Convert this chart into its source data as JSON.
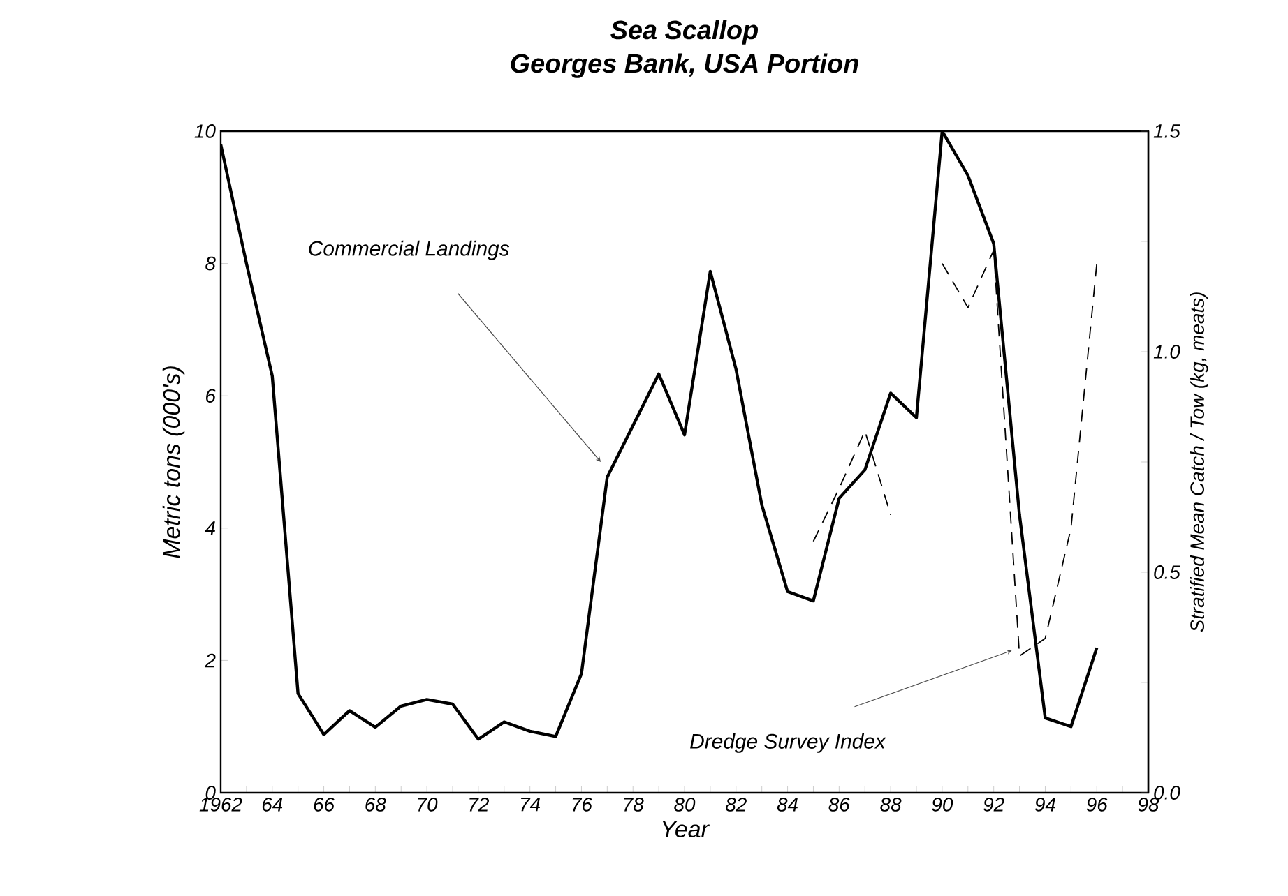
{
  "chart_data": {
    "type": "line",
    "title": "Sea Scallop",
    "subtitle": "Georges Bank, USA Portion",
    "xlabel": "Year",
    "ylabel": "Metric tons (000's)",
    "y2label": "Stratified Mean Catch / Tow (kg, meats)",
    "x": [
      1962,
      1963,
      1964,
      1965,
      1966,
      1967,
      1968,
      1969,
      1970,
      1971,
      1972,
      1973,
      1974,
      1975,
      1976,
      1977,
      1978,
      1979,
      1980,
      1981,
      1982,
      1983,
      1984,
      1985,
      1986,
      1987,
      1988,
      1989,
      1990,
      1991,
      1992,
      1993,
      1994,
      1995,
      1996
    ],
    "series": [
      {
        "name": "Commercial Landings",
        "color": "#000000",
        "line_style": "solid",
        "values": [
          9.8,
          8.0,
          6.3,
          1.5,
          0.88,
          1.24,
          0.99,
          1.31,
          1.41,
          1.34,
          0.81,
          1.07,
          0.93,
          0.85,
          1.8,
          4.77,
          5.55,
          6.33,
          5.41,
          7.88,
          6.4,
          4.35,
          3.04,
          2.9,
          4.45,
          4.88,
          6.04,
          5.67,
          10.0,
          9.33,
          8.3,
          4.2,
          1.13,
          1.0,
          2.19
        ]
      },
      {
        "name": "Dredge Survey Index",
        "color": "#000000",
        "line_style": "dashed",
        "axis": "y2",
        "x": [
          1985,
          1986,
          1987,
          1988,
          1989,
          1990,
          1991,
          1992,
          1993,
          1994,
          1995,
          1996
        ],
        "values": [
          0.57,
          0.69,
          0.82,
          0.63,
          null,
          1.2,
          1.1,
          1.23,
          0.31,
          0.35,
          0.6,
          1.2
        ]
      }
    ],
    "xlim": [
      1962,
      1998
    ],
    "xticks": [
      {
        "value": 1962,
        "label": "1962"
      },
      {
        "value": 1963,
        "label": null
      },
      {
        "value": 1964,
        "label": "64"
      },
      {
        "value": 1965,
        "label": null
      },
      {
        "value": 1966,
        "label": "66"
      },
      {
        "value": 1967,
        "label": null
      },
      {
        "value": 1968,
        "label": "68"
      },
      {
        "value": 1969,
        "label": null
      },
      {
        "value": 1970,
        "label": "70"
      },
      {
        "value": 1971,
        "label": null
      },
      {
        "value": 1972,
        "label": "72"
      },
      {
        "value": 1973,
        "label": null
      },
      {
        "value": 1974,
        "label": "74"
      },
      {
        "value": 1975,
        "label": null
      },
      {
        "value": 1976,
        "label": "76"
      },
      {
        "value": 1977,
        "label": null
      },
      {
        "value": 1978,
        "label": "78"
      },
      {
        "value": 1979,
        "label": null
      },
      {
        "value": 1980,
        "label": "80"
      },
      {
        "value": 1981,
        "label": null
      },
      {
        "value": 1982,
        "label": "82"
      },
      {
        "value": 1983,
        "label": null
      },
      {
        "value": 1984,
        "label": "84"
      },
      {
        "value": 1985,
        "label": null
      },
      {
        "value": 1986,
        "label": "86"
      },
      {
        "value": 1987,
        "label": null
      },
      {
        "value": 1988,
        "label": "88"
      },
      {
        "value": 1989,
        "label": null
      },
      {
        "value": 1990,
        "label": "90"
      },
      {
        "value": 1991,
        "label": null
      },
      {
        "value": 1992,
        "label": "92"
      },
      {
        "value": 1993,
        "label": null
      },
      {
        "value": 1994,
        "label": "94"
      },
      {
        "value": 1995,
        "label": null
      },
      {
        "value": 1996,
        "label": "96"
      },
      {
        "value": 1997,
        "label": null
      },
      {
        "value": 1998,
        "label": "98"
      }
    ],
    "ylim": [
      0,
      10
    ],
    "yticks": [
      0,
      2,
      4,
      6,
      8,
      10
    ],
    "y2lim": [
      0,
      1.5
    ],
    "y2ticks": [
      {
        "value": 0,
        "label": "0.0"
      },
      {
        "value": 0.25,
        "label": null
      },
      {
        "value": 0.5,
        "label": "0.5"
      },
      {
        "value": 0.75,
        "label": null
      },
      {
        "value": 1.0,
        "label": "1.0"
      },
      {
        "value": 1.25,
        "label": null
      },
      {
        "value": 1.5,
        "label": "1.5"
      }
    ]
  }
}
